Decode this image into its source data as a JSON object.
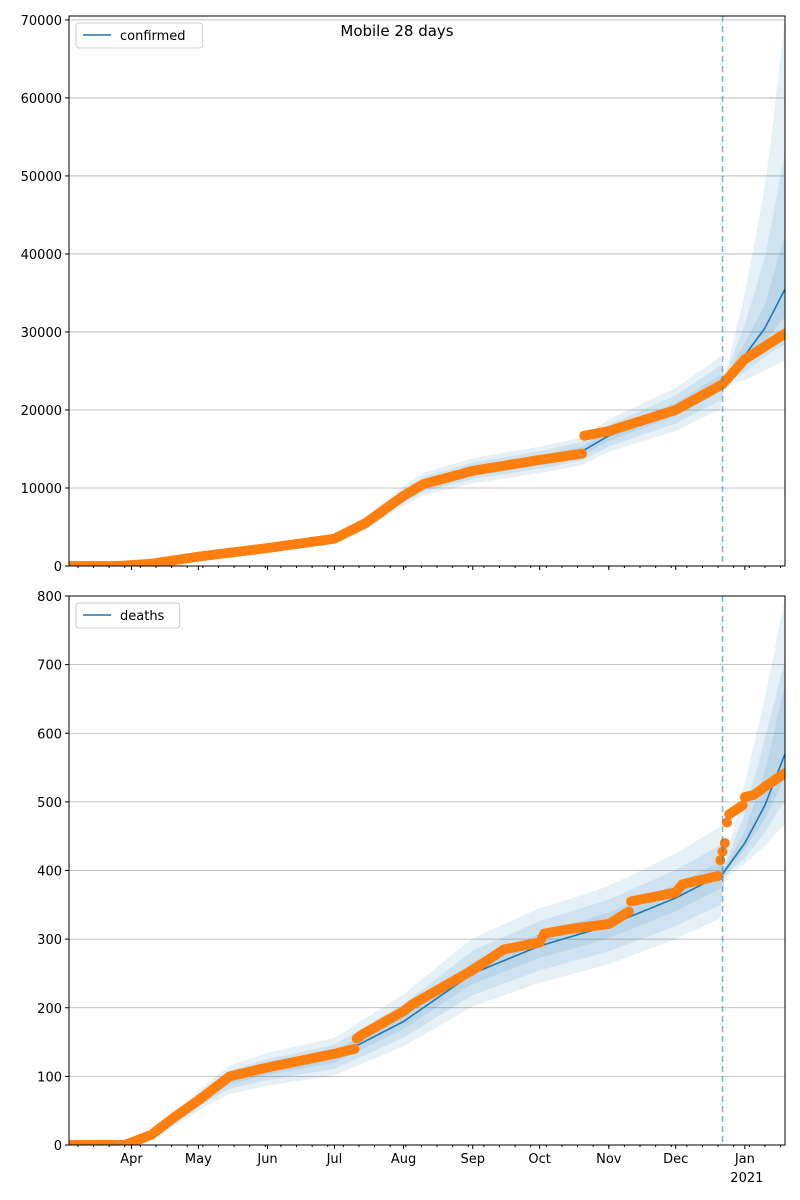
{
  "chart_data": [
    {
      "type": "line",
      "title": "Mobile 28 days",
      "legend": {
        "label": "confirmed",
        "placement": "top-left"
      },
      "x_start_date": "Mar 4",
      "xlim": [
        0,
        321
      ],
      "ylim": [
        0,
        70500
      ],
      "yticks": [
        0,
        10000,
        20000,
        30000,
        40000,
        50000,
        60000,
        70000
      ],
      "grid": "y",
      "forecast_start_day": 293,
      "median": [
        [
          0,
          0
        ],
        [
          20,
          20
        ],
        [
          37,
          300
        ],
        [
          58,
          1200
        ],
        [
          89,
          2300
        ],
        [
          119,
          3500
        ],
        [
          133,
          5500
        ],
        [
          150,
          9000
        ],
        [
          159,
          10500
        ],
        [
          181,
          12200
        ],
        [
          211,
          13600
        ],
        [
          230,
          14700
        ],
        [
          242,
          16700
        ],
        [
          272,
          20000
        ],
        [
          293,
          23500
        ],
        [
          303,
          27000
        ],
        [
          312,
          30500
        ],
        [
          321,
          35500
        ]
      ],
      "bands": [
        [
          0,
          0.75,
          0.85,
          0.93,
          1.07,
          1.15,
          1.25
        ],
        [
          60,
          0.8,
          0.88,
          0.94,
          1.06,
          1.12,
          1.2
        ],
        [
          150,
          0.86,
          0.91,
          0.96,
          1.04,
          1.09,
          1.14
        ],
        [
          230,
          0.88,
          0.92,
          0.96,
          1.04,
          1.08,
          1.12
        ],
        [
          292,
          0.86,
          0.91,
          0.96,
          1.05,
          1.1,
          1.15
        ],
        [
          294,
          0.97,
          0.98,
          0.99,
          1.01,
          1.02,
          1.03
        ],
        [
          303,
          0.88,
          0.92,
          0.96,
          1.06,
          1.15,
          1.3
        ],
        [
          312,
          0.82,
          0.88,
          0.94,
          1.1,
          1.3,
          1.6
        ],
        [
          321,
          0.74,
          0.8,
          0.9,
          1.2,
          1.5,
          1.98
        ]
      ],
      "observed": [
        [
          0,
          0
        ],
        [
          22,
          0
        ],
        [
          37,
          300
        ],
        [
          58,
          1200
        ],
        [
          89,
          2300
        ],
        [
          119,
          3500
        ],
        [
          133,
          5500
        ],
        [
          150,
          9000
        ],
        [
          159,
          10500
        ],
        [
          181,
          12200
        ],
        [
          211,
          13600
        ],
        [
          230,
          14400
        ],
        [
          231,
          16700
        ],
        [
          242,
          17300
        ],
        [
          272,
          20000
        ],
        [
          293,
          23300
        ],
        [
          303,
          26500
        ],
        [
          321,
          29800
        ]
      ]
    },
    {
      "type": "line",
      "legend": {
        "label": "deaths",
        "placement": "top-left"
      },
      "x_start_date": "Mar 4",
      "xlim": [
        0,
        321
      ],
      "ylim": [
        0,
        800
      ],
      "yticks": [
        0,
        100,
        200,
        300,
        400,
        500,
        600,
        700,
        800
      ],
      "grid": "y",
      "xticks": [
        {
          "day": 28,
          "label": "Apr"
        },
        {
          "day": 58,
          "label": "May"
        },
        {
          "day": 89,
          "label": "Jun"
        },
        {
          "day": 119,
          "label": "Jul"
        },
        {
          "day": 150,
          "label": "Aug"
        },
        {
          "day": 181,
          "label": "Sep"
        },
        {
          "day": 211,
          "label": "Oct"
        },
        {
          "day": 242,
          "label": "Nov"
        },
        {
          "day": 272,
          "label": "Dec"
        },
        {
          "day": 303,
          "label": "Jan"
        }
      ],
      "year_label": "2021",
      "forecast_start_day": 293,
      "median": [
        [
          0,
          0
        ],
        [
          25,
          1
        ],
        [
          37,
          12
        ],
        [
          47,
          35
        ],
        [
          58,
          65
        ],
        [
          72,
          95
        ],
        [
          89,
          110
        ],
        [
          119,
          128
        ],
        [
          150,
          180
        ],
        [
          181,
          250
        ],
        [
          211,
          290
        ],
        [
          242,
          320
        ],
        [
          272,
          360
        ],
        [
          293,
          395
        ],
        [
          303,
          440
        ],
        [
          312,
          495
        ],
        [
          321,
          570
        ]
      ],
      "bands": [
        [
          0,
          0.7,
          0.8,
          0.9,
          1.1,
          1.2,
          1.3
        ],
        [
          60,
          0.78,
          0.86,
          0.93,
          1.07,
          1.14,
          1.22
        ],
        [
          150,
          0.8,
          0.87,
          0.94,
          1.07,
          1.14,
          1.22
        ],
        [
          230,
          0.82,
          0.88,
          0.94,
          1.06,
          1.12,
          1.18
        ],
        [
          292,
          0.84,
          0.89,
          0.95,
          1.05,
          1.11,
          1.18
        ],
        [
          294,
          0.97,
          0.98,
          0.99,
          1.01,
          1.02,
          1.03
        ],
        [
          303,
          0.93,
          0.95,
          0.98,
          1.04,
          1.1,
          1.2
        ],
        [
          312,
          0.88,
          0.92,
          0.96,
          1.1,
          1.2,
          1.32
        ],
        [
          321,
          0.82,
          0.88,
          0.94,
          1.18,
          1.24,
          1.4
        ]
      ],
      "observed": [
        [
          0,
          0
        ],
        [
          25,
          0
        ],
        [
          37,
          15
        ],
        [
          47,
          40
        ],
        [
          58,
          65
        ],
        [
          72,
          100
        ],
        [
          89,
          113
        ],
        [
          119,
          133
        ],
        [
          128,
          140
        ],
        [
          129,
          155
        ],
        [
          131,
          160
        ],
        [
          150,
          195
        ],
        [
          154,
          205
        ],
        [
          181,
          255
        ],
        [
          195,
          285
        ],
        [
          211,
          295
        ],
        [
          213,
          308
        ],
        [
          225,
          315
        ],
        [
          242,
          322
        ],
        [
          251,
          340
        ],
        [
          252,
          355
        ],
        [
          272,
          368
        ],
        [
          275,
          380
        ],
        [
          291,
          392
        ],
        [
          292,
          415
        ],
        [
          294,
          440
        ],
        [
          295,
          470
        ],
        [
          296,
          482
        ],
        [
          302,
          495
        ],
        [
          303,
          507
        ],
        [
          307,
          510
        ],
        [
          312,
          522
        ],
        [
          321,
          542
        ]
      ]
    }
  ]
}
